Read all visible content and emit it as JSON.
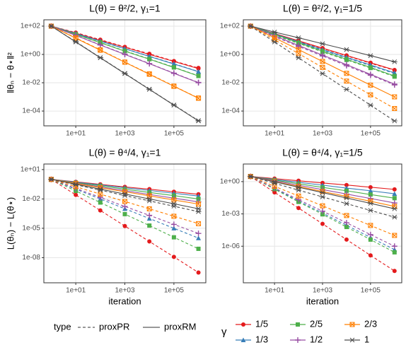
{
  "chart_data": [
    {
      "type": "line",
      "title": "L(θ) = θ²/2, γ₁=1",
      "ylabel": "‖θₙ − θ⋆‖²",
      "log_x": true,
      "log_y": true,
      "grid": true,
      "x": [
        1,
        10,
        100,
        1000,
        10000,
        100000,
        1000000
      ],
      "xlim": [
        0.5,
        2000000
      ],
      "xticks": [
        {
          "value": 10,
          "label": "1e+01"
        },
        {
          "value": 1000,
          "label": "1e+03"
        },
        {
          "value": 100000,
          "label": "1e+05"
        }
      ],
      "ylim": [
        9e-06,
        280
      ],
      "yticks": [
        {
          "value": 100,
          "label": "1e+02"
        },
        {
          "value": 1,
          "label": "1e+00"
        },
        {
          "value": 0.01,
          "label": "1e-02"
        },
        {
          "value": 0.0001,
          "label": "1e-04"
        }
      ],
      "series": [
        {
          "name": "1/5",
          "type": "proxPR",
          "dash": true,
          "color": "#e41a1c",
          "marker": "circle",
          "values": [
            100,
            35,
            11,
            3.4,
            1.1,
            0.34,
            0.11
          ]
        },
        {
          "name": "1/5",
          "type": "proxRM",
          "dash": false,
          "color": "#e41a1c",
          "marker": "circle",
          "values": [
            100,
            32,
            10,
            3.2,
            1,
            0.32,
            0.1
          ]
        },
        {
          "name": "1/3",
          "type": "proxPR",
          "dash": true,
          "color": "#377eb8",
          "marker": "triangle",
          "values": [
            100,
            31,
            9,
            2.6,
            0.75,
            0.22,
            0.062
          ]
        },
        {
          "name": "1/3",
          "type": "proxRM",
          "dash": false,
          "color": "#377eb8",
          "marker": "triangle",
          "values": [
            100,
            29,
            8.5,
            2.5,
            0.72,
            0.21,
            0.06
          ]
        },
        {
          "name": "2/5",
          "type": "proxPR",
          "dash": true,
          "color": "#4daf4a",
          "marker": "square",
          "values": [
            100,
            27,
            7,
            1.8,
            0.48,
            0.125,
            0.031
          ]
        },
        {
          "name": "2/5",
          "type": "proxRM",
          "dash": false,
          "color": "#4daf4a",
          "marker": "square",
          "values": [
            100,
            26,
            6.7,
            1.7,
            0.46,
            0.12,
            0.03
          ]
        },
        {
          "name": "1/2",
          "type": "proxPR",
          "dash": true,
          "color": "#984ea3",
          "marker": "plus",
          "values": [
            100,
            23,
            4.8,
            1.05,
            0.23,
            0.048,
            0.0105
          ]
        },
        {
          "name": "1/2",
          "type": "proxRM",
          "dash": false,
          "color": "#984ea3",
          "marker": "plus",
          "values": [
            100,
            22,
            4.6,
            1,
            0.22,
            0.046,
            0.01
          ]
        },
        {
          "name": "2/3",
          "type": "proxPR",
          "dash": true,
          "color": "#ff7f00",
          "marker": "boxx",
          "values": [
            100,
            15,
            2.1,
            0.29,
            0.042,
            0.0058,
            0.00083
          ]
        },
        {
          "name": "2/3",
          "type": "proxRM",
          "dash": false,
          "color": "#ff7f00",
          "marker": "boxx",
          "values": [
            100,
            14,
            2,
            0.28,
            0.04,
            0.0056,
            0.0008
          ]
        },
        {
          "name": "1",
          "type": "proxPR",
          "dash": true,
          "color": "#4d4d4d",
          "marker": "star",
          "values": [
            100,
            8,
            0.6,
            0.046,
            0.0035,
            0.00027,
            2.1e-05
          ]
        },
        {
          "name": "1",
          "type": "proxRM",
          "dash": false,
          "color": "#4d4d4d",
          "marker": "star",
          "values": [
            100,
            7.6,
            0.58,
            0.044,
            0.0034,
            0.00026,
            2e-05
          ]
        }
      ]
    },
    {
      "type": "line",
      "title": "L(θ) = θ²/2, γ₁=1/5",
      "log_x": true,
      "log_y": true,
      "grid": true,
      "x": [
        1,
        10,
        100,
        1000,
        10000,
        100000,
        1000000
      ],
      "xlim": [
        0.5,
        2000000
      ],
      "xticks": [
        {
          "value": 10,
          "label": "1e+01"
        },
        {
          "value": 1000,
          "label": "1e+03"
        },
        {
          "value": 100000,
          "label": "1e+05"
        }
      ],
      "ylim": [
        9e-06,
        280
      ],
      "yticks": [
        {
          "value": 100,
          "label": "1e+02"
        },
        {
          "value": 1,
          "label": "1e+00"
        },
        {
          "value": 0.01,
          "label": "1e-02"
        },
        {
          "value": 0.0001,
          "label": "1e-04"
        }
      ],
      "series": [
        {
          "name": "1/5",
          "type": "proxPR",
          "dash": true,
          "color": "#e41a1c",
          "marker": "circle",
          "values": [
            100,
            28,
            8.5,
            2.6,
            0.8,
            0.24,
            0.075
          ]
        },
        {
          "name": "1/5",
          "type": "proxRM",
          "dash": false,
          "color": "#e41a1c",
          "marker": "circle",
          "values": [
            100,
            30,
            9.2,
            2.8,
            0.85,
            0.26,
            0.08
          ]
        },
        {
          "name": "1/3",
          "type": "proxPR",
          "dash": true,
          "color": "#377eb8",
          "marker": "triangle",
          "values": [
            100,
            25,
            7,
            2,
            0.57,
            0.16,
            0.045
          ]
        },
        {
          "name": "1/3",
          "type": "proxRM",
          "dash": false,
          "color": "#377eb8",
          "marker": "triangle",
          "values": [
            100,
            28,
            7.9,
            2.2,
            0.63,
            0.18,
            0.05
          ]
        },
        {
          "name": "2/5",
          "type": "proxPR",
          "dash": true,
          "color": "#4daf4a",
          "marker": "square",
          "values": [
            100,
            23,
            6,
            1.5,
            0.41,
            0.11,
            0.027
          ]
        },
        {
          "name": "2/5",
          "type": "proxRM",
          "dash": false,
          "color": "#4daf4a",
          "marker": "square",
          "values": [
            100,
            26,
            6.7,
            1.7,
            0.46,
            0.12,
            0.03
          ]
        },
        {
          "name": "1/2",
          "type": "proxPR",
          "dash": true,
          "color": "#984ea3",
          "marker": "plus",
          "values": [
            100,
            18,
            3.7,
            0.78,
            0.16,
            0.034,
            0.007
          ]
        },
        {
          "name": "1/2",
          "type": "proxRM",
          "dash": false,
          "color": "#984ea3",
          "marker": "plus",
          "values": [
            100,
            21,
            4.3,
            0.9,
            0.19,
            0.039,
            0.008
          ]
        },
        {
          "name": "2/3",
          "type": "proxPR",
          "dash": true,
          "color": "#ff7f00",
          "marker": "boxx",
          "values": [
            100,
            11,
            1.15,
            0.12,
            0.013,
            0.0014,
            0.00015
          ]
        },
        {
          "name": "2/3",
          "type": "proxRM",
          "dash": false,
          "color": "#ff7f00",
          "marker": "boxx",
          "values": [
            100,
            15,
            2.2,
            0.32,
            0.046,
            0.0068,
            0.001
          ]
        },
        {
          "name": "1",
          "type": "proxPR",
          "dash": true,
          "color": "#4d4d4d",
          "marker": "star",
          "values": [
            100,
            7.6,
            0.58,
            0.044,
            0.0034,
            0.00026,
            2e-05
          ]
        },
        {
          "name": "1",
          "type": "proxRM",
          "dash": false,
          "color": "#4d4d4d",
          "marker": "star",
          "values": [
            100,
            38,
            15,
            5.7,
            2.2,
            0.82,
            0.3
          ]
        }
      ]
    },
    {
      "type": "line",
      "title": "L(θ) = θ⁴/4, γ₁=1",
      "ylabel": "L(θₙ) − L(θ⋆)",
      "xlabel": "iteration",
      "log_x": true,
      "log_y": true,
      "grid": true,
      "x": [
        1,
        10,
        100,
        1000,
        10000,
        100000,
        1000000
      ],
      "xlim": [
        0.5,
        2000000
      ],
      "xticks": [
        {
          "value": 10,
          "label": "1e+01"
        },
        {
          "value": 1000,
          "label": "1e+03"
        },
        {
          "value": 100000,
          "label": "1e+05"
        }
      ],
      "ylim": [
        2.7e-11,
        37
      ],
      "yticks": [
        {
          "value": 10,
          "label": "1e+01"
        },
        {
          "value": 0.01,
          "label": "1e-02"
        },
        {
          "value": 1e-05,
          "label": "1e-05"
        },
        {
          "value": 1e-08,
          "label": "1e-08"
        }
      ],
      "series": [
        {
          "name": "1/5",
          "type": "proxPR",
          "dash": true,
          "color": "#e41a1c",
          "marker": "circle",
          "values": [
            1,
            0.026,
            0.00067,
            1.7e-05,
            4.5e-07,
            1.2e-08,
            3e-10
          ]
        },
        {
          "name": "1/5",
          "type": "proxRM",
          "dash": false,
          "color": "#e41a1c",
          "marker": "circle",
          "values": [
            1,
            0.56,
            0.31,
            0.17,
            0.1,
            0.054,
            0.03
          ]
        },
        {
          "name": "1/3",
          "type": "proxPR",
          "dash": true,
          "color": "#377eb8",
          "marker": "triangle",
          "values": [
            1,
            0.1,
            0.01,
            0.001,
            0.0001,
            1e-05,
            1e-06
          ]
        },
        {
          "name": "1/3",
          "type": "proxRM",
          "dash": false,
          "color": "#377eb8",
          "marker": "triangle",
          "values": [
            1,
            0.52,
            0.27,
            0.14,
            0.074,
            0.038,
            0.02
          ]
        },
        {
          "name": "2/5",
          "type": "proxPR",
          "dash": true,
          "color": "#4daf4a",
          "marker": "square",
          "values": [
            1,
            0.066,
            0.0043,
            0.00028,
            1.9e-05,
            1.2e-06,
            8e-08
          ]
        },
        {
          "name": "2/5",
          "type": "proxRM",
          "dash": false,
          "color": "#4daf4a",
          "marker": "square",
          "values": [
            1,
            0.46,
            0.22,
            0.1,
            0.046,
            0.022,
            0.01
          ]
        },
        {
          "name": "1/2",
          "type": "proxPR",
          "dash": true,
          "color": "#984ea3",
          "marker": "plus",
          "values": [
            1,
            0.12,
            0.0144,
            0.0017,
            0.00021,
            2.5e-05,
            3e-06
          ]
        },
        {
          "name": "1/2",
          "type": "proxRM",
          "dash": false,
          "color": "#984ea3",
          "marker": "plus",
          "values": [
            1,
            0.41,
            0.17,
            0.07,
            0.029,
            0.012,
            0.005
          ]
        },
        {
          "name": "2/3",
          "type": "proxPR",
          "dash": true,
          "color": "#ff7f00",
          "marker": "boxx",
          "values": [
            1,
            0.18,
            0.031,
            0.0055,
            0.00098,
            0.00017,
            3e-05
          ]
        },
        {
          "name": "2/3",
          "type": "proxRM",
          "dash": false,
          "color": "#ff7f00",
          "marker": "boxx",
          "values": [
            1,
            0.38,
            0.14,
            0.054,
            0.021,
            0.0078,
            0.003
          ]
        },
        {
          "name": "1",
          "type": "proxPR",
          "dash": true,
          "color": "#4d4d4d",
          "marker": "star",
          "values": [
            1,
            0.28,
            0.079,
            0.022,
            0.0063,
            0.0018,
            0.0005
          ]
        },
        {
          "name": "1",
          "type": "proxRM",
          "dash": false,
          "color": "#4d4d4d",
          "marker": "star",
          "values": [
            1,
            0.32,
            0.1,
            0.032,
            0.01,
            0.0032,
            0.001
          ]
        }
      ]
    },
    {
      "type": "line",
      "title": "L(θ) = θ⁴/4, γ₁=1/5",
      "xlabel": "iteration",
      "log_x": true,
      "log_y": true,
      "grid": true,
      "x": [
        1,
        10,
        100,
        1000,
        10000,
        100000,
        1000000
      ],
      "xlim": [
        0.5,
        2000000
      ],
      "xticks": [
        {
          "value": 10,
          "label": "1e+01"
        },
        {
          "value": 1000,
          "label": "1e+03"
        },
        {
          "value": 100000,
          "label": "1e+05"
        }
      ],
      "ylim": [
        4e-10,
        43
      ],
      "yticks": [
        {
          "value": 1,
          "label": "1e+00"
        },
        {
          "value": 0.001,
          "label": "1e-03"
        },
        {
          "value": 1e-06,
          "label": "1e-06"
        }
      ],
      "series": [
        {
          "name": "1/5",
          "type": "proxPR",
          "dash": true,
          "color": "#e41a1c",
          "marker": "circle",
          "values": [
            3,
            0.1,
            0.0035,
            0.00012,
            4.1e-06,
            1.4e-07,
            5e-09
          ]
        },
        {
          "name": "1/5",
          "type": "proxRM",
          "dash": false,
          "color": "#e41a1c",
          "marker": "circle",
          "values": [
            3,
            1.9,
            1.2,
            0.75,
            0.48,
            0.3,
            0.19
          ]
        },
        {
          "name": "1/3",
          "type": "proxPR",
          "dash": true,
          "color": "#377eb8",
          "marker": "triangle",
          "values": [
            3,
            0.22,
            0.016,
            0.0012,
            8.8e-05,
            6.5e-06,
            4.8e-07
          ]
        },
        {
          "name": "1/3",
          "type": "proxRM",
          "dash": false,
          "color": "#377eb8",
          "marker": "triangle",
          "values": [
            3,
            1.6,
            0.87,
            0.47,
            0.25,
            0.14,
            0.074
          ]
        },
        {
          "name": "2/5",
          "type": "proxPR",
          "dash": true,
          "color": "#4daf4a",
          "marker": "square",
          "values": [
            3,
            0.2,
            0.013,
            0.00091,
            6.1e-05,
            4.1e-06,
            2.7e-07
          ]
        },
        {
          "name": "2/5",
          "type": "proxRM",
          "dash": false,
          "color": "#4daf4a",
          "marker": "square",
          "values": [
            3,
            1.4,
            0.63,
            0.29,
            0.14,
            0.063,
            0.029
          ]
        },
        {
          "name": "1/2",
          "type": "proxPR",
          "dash": true,
          "color": "#984ea3",
          "marker": "plus",
          "values": [
            3,
            0.25,
            0.021,
            0.0018,
            0.00015,
            1.2e-05,
            1e-06
          ]
        },
        {
          "name": "1/2",
          "type": "proxRM",
          "dash": false,
          "color": "#984ea3",
          "marker": "plus",
          "values": [
            3,
            1.2,
            0.46,
            0.18,
            0.07,
            0.027,
            0.0104
          ]
        },
        {
          "name": "2/3",
          "type": "proxPR",
          "dash": true,
          "color": "#ff7f00",
          "marker": "boxx",
          "values": [
            3,
            0.37,
            0.046,
            0.0056,
            0.0007,
            8.5e-05,
            1e-05
          ]
        },
        {
          "name": "2/3",
          "type": "proxRM",
          "dash": false,
          "color": "#ff7f00",
          "marker": "boxx",
          "values": [
            3,
            1,
            0.36,
            0.12,
            0.042,
            0.015,
            0.005
          ]
        },
        {
          "name": "1",
          "type": "proxPR",
          "dash": true,
          "color": "#4d4d4d",
          "marker": "star",
          "values": [
            3,
            0.7,
            0.16,
            0.038,
            0.009,
            0.0021,
            0.0005
          ]
        },
        {
          "name": "1",
          "type": "proxRM",
          "dash": false,
          "color": "#4d4d4d",
          "marker": "star",
          "values": [
            3,
            0.95,
            0.3,
            0.095,
            0.03,
            0.0095,
            0.003
          ]
        }
      ]
    }
  ],
  "legend": {
    "type_title": "type",
    "gamma_title": "γ"
  }
}
